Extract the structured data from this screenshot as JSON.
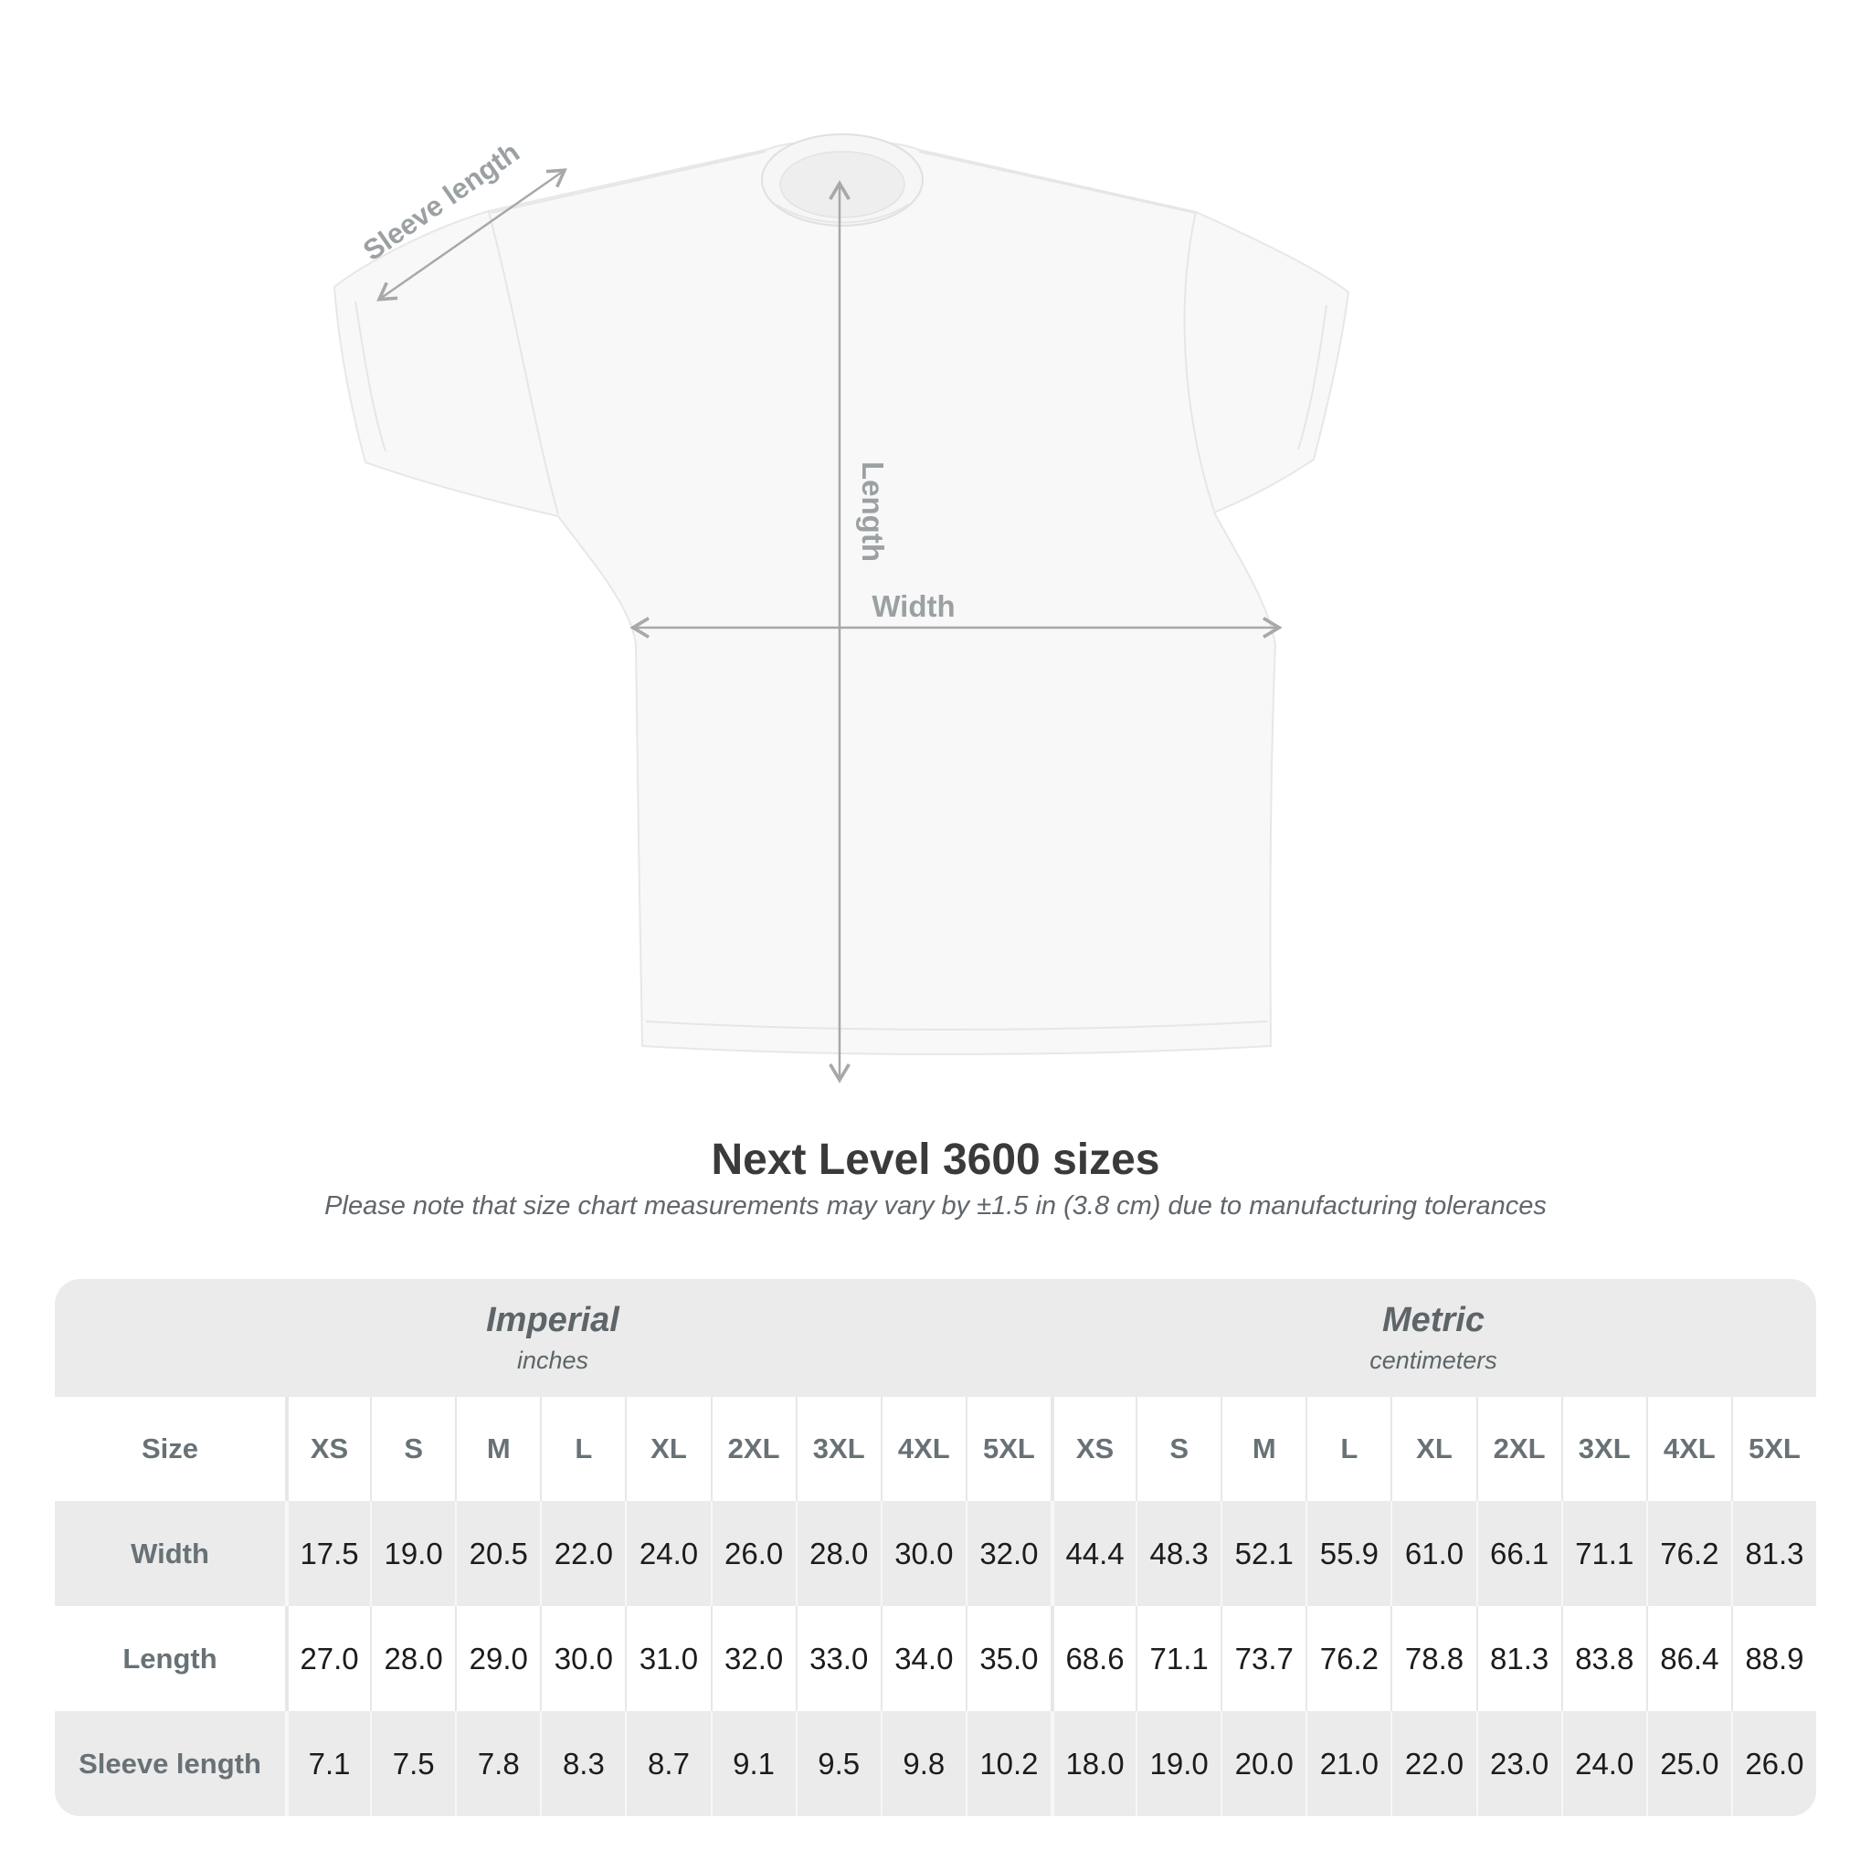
{
  "diagram": {
    "labels": {
      "sleeve": "Sleeve length",
      "length": "Length",
      "width": "Width"
    }
  },
  "title": "Next Level 3600 sizes",
  "subtitle": "Please note that size chart measurements may vary by ±1.5 in (3.8 cm) due to manufacturing tolerances",
  "table": {
    "unit_groups": [
      {
        "name": "Imperial",
        "unit": "inches"
      },
      {
        "name": "Metric",
        "unit": "centimeters"
      }
    ],
    "size_label": "Size",
    "sizes": [
      "XS",
      "S",
      "M",
      "L",
      "XL",
      "2XL",
      "3XL",
      "4XL",
      "5XL"
    ],
    "rows": [
      {
        "label": "Width",
        "imperial": [
          "17.5",
          "19.0",
          "20.5",
          "22.0",
          "24.0",
          "26.0",
          "28.0",
          "30.0",
          "32.0"
        ],
        "metric": [
          "44.4",
          "48.3",
          "52.1",
          "55.9",
          "61.0",
          "66.1",
          "71.1",
          "76.2",
          "81.3"
        ]
      },
      {
        "label": "Length",
        "imperial": [
          "27.0",
          "28.0",
          "29.0",
          "30.0",
          "31.0",
          "32.0",
          "33.0",
          "34.0",
          "35.0"
        ],
        "metric": [
          "68.6",
          "71.1",
          "73.7",
          "76.2",
          "78.8",
          "81.3",
          "83.8",
          "86.4",
          "88.9"
        ]
      },
      {
        "label": "Sleeve length",
        "imperial": [
          "7.1",
          "7.5",
          "7.8",
          "8.3",
          "8.7",
          "9.1",
          "9.5",
          "9.8",
          "10.2"
        ],
        "metric": [
          "18.0",
          "19.0",
          "20.0",
          "21.0",
          "22.0",
          "23.0",
          "24.0",
          "25.0",
          "26.0"
        ]
      }
    ]
  },
  "colors": {
    "arrow": "#a8a8a8",
    "diagram_label": "#9ba1a3",
    "title": "#3a3a3a",
    "subtitle": "#60666b",
    "table_background": "#ebebeb",
    "header_text": "#687276",
    "value_text": "#1c1c1c"
  }
}
